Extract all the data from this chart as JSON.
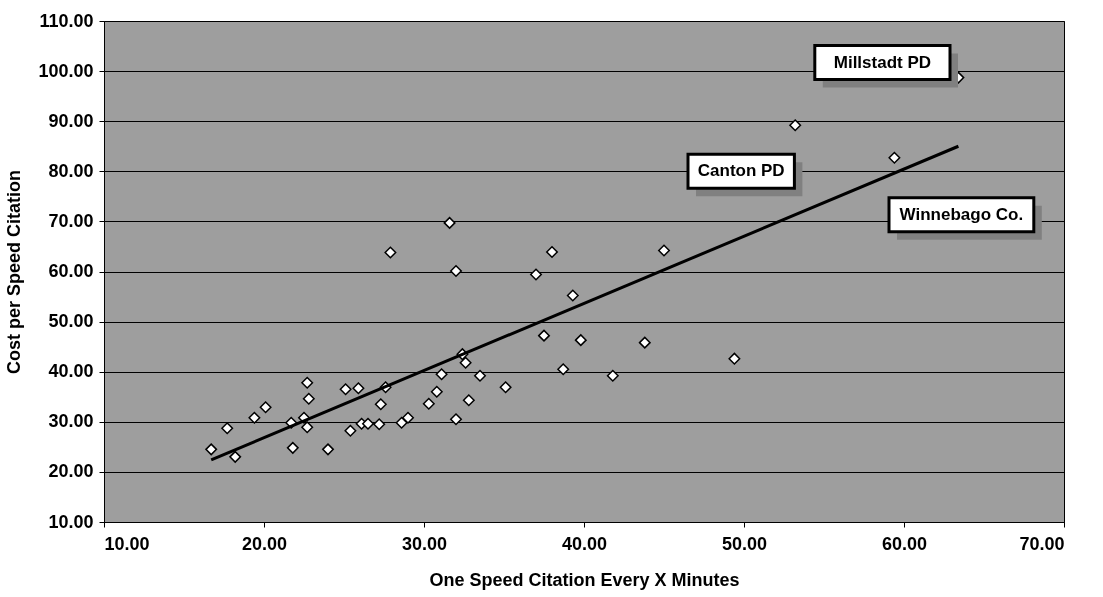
{
  "chart_data": {
    "type": "scatter",
    "xlabel": "One Speed Citation Every X Minutes",
    "ylabel": "Cost per Speed Citation",
    "xlim": [
      10,
      70
    ],
    "xticks": [
      {
        "value": 10,
        "label": "10.00"
      },
      {
        "value": 20,
        "label": "20.00"
      },
      {
        "value": 30,
        "label": "30.00"
      },
      {
        "value": 40,
        "label": "40.00"
      },
      {
        "value": 50,
        "label": "50.00"
      },
      {
        "value": 60,
        "label": "60.00"
      },
      {
        "value": 70,
        "label": "70.00"
      }
    ],
    "ylim": [
      10,
      110
    ],
    "yticks": [
      {
        "value": 10,
        "label": "10.00"
      },
      {
        "value": 20,
        "label": "20.00"
      },
      {
        "value": 30,
        "label": "30.00"
      },
      {
        "value": 40,
        "label": "40.00"
      },
      {
        "value": 50,
        "label": "50.00"
      },
      {
        "value": 60,
        "label": "60.00"
      },
      {
        "value": 70,
        "label": "70.00"
      },
      {
        "value": 80,
        "label": "80.00"
      },
      {
        "value": 90,
        "label": "90.00"
      },
      {
        "value": 100,
        "label": "100.00"
      },
      {
        "value": 110,
        "label": "110.00"
      }
    ],
    "grid": "y",
    "legend": false,
    "marker": "diamond",
    "series": [
      {
        "type": "scatter",
        "color": "#ffffff",
        "x": [
          16.7,
          17.7,
          18.2,
          19.4,
          20.1,
          21.7,
          21.8,
          22.3,
          22.5,
          22.7,
          22.7,
          22.8,
          24.0,
          25.1,
          25.4,
          25.9,
          26.1,
          26.5,
          27.2,
          27.3,
          27.6,
          27.9,
          28.6,
          29.0,
          30.3,
          30.8,
          31.1,
          31.6,
          32.0,
          32.0,
          32.4,
          32.6,
          32.8,
          33.5,
          35.1,
          37.0,
          37.5,
          38.0,
          38.7,
          39.3,
          39.8,
          41.8,
          43.8,
          45.0,
          49.4,
          53.2,
          59.4,
          63.4
        ],
        "values": [
          24.5,
          28.7,
          23.0,
          30.8,
          32.9,
          29.8,
          24.8,
          null,
          30.8,
          28.9,
          37.8,
          34.6,
          24.5,
          36.5,
          28.2,
          36.7,
          29.6,
          29.6,
          29.5,
          33.5,
          36.9,
          63.8,
          29.8,
          30.8,
          33.6,
          36.0,
          39.5,
          69.7,
          60.1,
          30.5,
          43.5,
          41.8,
          34.3,
          39.2,
          36.9,
          59.4,
          47.2,
          63.9,
          40.5,
          55.2,
          46.3,
          39.2,
          45.8,
          64.2,
          42.6,
          89.2,
          82.7,
          98.7
        ]
      },
      {
        "type": "line",
        "color": "#000000",
        "marker": "none",
        "line_style": "solid",
        "x": [
          16.7,
          63.4
        ],
        "values": [
          22.4,
          85.0
        ]
      }
    ],
    "annotations": [
      {
        "text": "Millstadt PD",
        "x": 63.4,
        "y": 98.7
      },
      {
        "text": "Canton PD",
        "x": 53.2,
        "y": 89.2
      },
      {
        "text": "Winnebago Co.",
        "x": 59.4,
        "y": 82.7
      }
    ]
  }
}
